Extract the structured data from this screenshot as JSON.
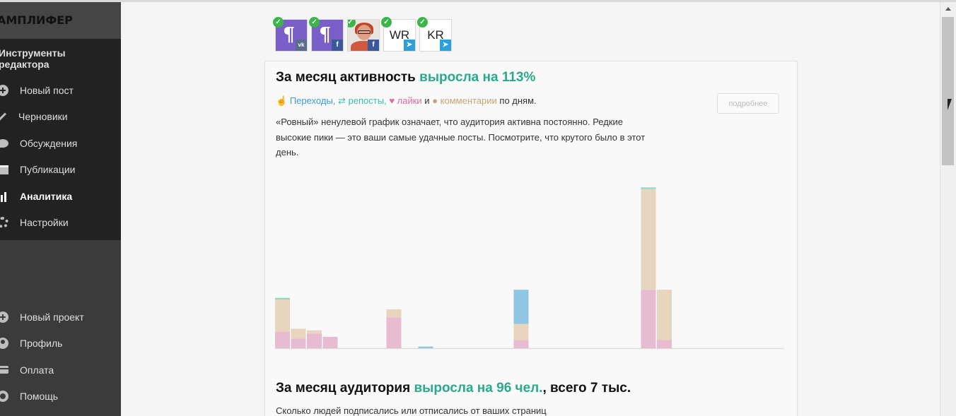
{
  "brand": "АМПЛИФЕР",
  "sidebar": {
    "tools_title": "Инструменты редактора",
    "items": [
      {
        "label": "Новый пост",
        "icon": "plus-circle-icon"
      },
      {
        "label": "Черновики",
        "icon": "pencil-icon"
      },
      {
        "label": "Обсуждения",
        "icon": "comment-icon"
      },
      {
        "label": "Публикации",
        "icon": "calendar-icon"
      },
      {
        "label": "Аналитика",
        "icon": "bar-chart-icon",
        "active": true
      },
      {
        "label": "Настройки",
        "icon": "gear-icon"
      }
    ],
    "lower_items": [
      {
        "label": "Новый проект",
        "icon": "plus-circle-icon"
      },
      {
        "label": "Профиль",
        "icon": "user-icon"
      },
      {
        "label": "Оплата",
        "icon": "credit-card-icon"
      },
      {
        "label": "Помощь",
        "icon": "help-icon"
      }
    ]
  },
  "accounts": [
    {
      "type": "logo",
      "glyph": "¶",
      "network": "vk",
      "network_label": "vk"
    },
    {
      "type": "logo",
      "glyph": "¶",
      "network": "fb",
      "network_label": "f"
    },
    {
      "type": "photo",
      "network": "fb",
      "network_label": "f"
    },
    {
      "type": "text",
      "text": "WR",
      "network": "tg",
      "network_label": "➤"
    },
    {
      "type": "text",
      "text": "KR",
      "network": "tg",
      "network_label": "➤"
    }
  ],
  "activity": {
    "title_prefix": "За месяц активность ",
    "title_accent": "выросла на 113%",
    "legend": {
      "clicks": "Переходы,",
      "reposts": "репосты,",
      "likes": "лайки",
      "and": " и ",
      "comments": "комментарии",
      "suffix": " по дням."
    },
    "description": "«Ровный» ненулевой график означает, что аудитория активна постоянно. Редкие высокие пики — это ваши самые удачные посты. Посмотрите, что крутого было в этот день.",
    "details_button": "подробнее"
  },
  "chart_data": {
    "type": "bar",
    "stacked": true,
    "ylim": [
      0,
      100
    ],
    "colors": {
      "likes": "#e8bcd0",
      "comments": "#e8d5bd",
      "clicks": "#90c5e3",
      "reposts": "#88dcc8"
    },
    "series": [
      {
        "name": "лайки",
        "values": [
          10,
          6,
          9,
          7,
          0,
          0,
          0,
          19,
          0,
          0,
          0,
          0,
          0,
          0,
          0,
          5,
          0,
          0,
          0,
          0,
          0,
          0,
          0,
          36,
          5,
          0,
          0,
          0,
          0,
          0,
          0,
          0
        ]
      },
      {
        "name": "комментарии",
        "values": [
          20,
          6,
          2,
          0,
          0,
          0,
          0,
          5,
          0,
          0,
          0,
          0,
          0,
          0,
          0,
          10,
          0,
          0,
          0,
          0,
          0,
          0,
          0,
          62,
          31,
          0,
          0,
          0,
          0,
          0,
          0,
          0
        ]
      },
      {
        "name": "переходы",
        "values": [
          0,
          0,
          0,
          0,
          0,
          0,
          0,
          0,
          0,
          1,
          0,
          0,
          0,
          0,
          0,
          21,
          0,
          0,
          0,
          0,
          0,
          0,
          0,
          0,
          0,
          0,
          0,
          0,
          0,
          0,
          0,
          0
        ]
      },
      {
        "name": "репосты",
        "values": [
          1,
          0,
          0,
          0,
          0,
          0,
          0,
          0,
          0,
          0,
          0,
          0,
          0,
          0,
          0,
          0,
          0,
          0,
          0,
          0,
          0,
          0,
          0,
          1,
          0,
          0,
          0,
          0,
          0,
          0,
          0,
          0
        ]
      }
    ]
  },
  "audience": {
    "title_prefix": "За месяц аудитория ",
    "title_accent": "выросла на 96 чел.",
    "title_suffix": ", всего 7 тыс.",
    "description": "Сколько людей подписались или отписались от ваших страниц"
  }
}
